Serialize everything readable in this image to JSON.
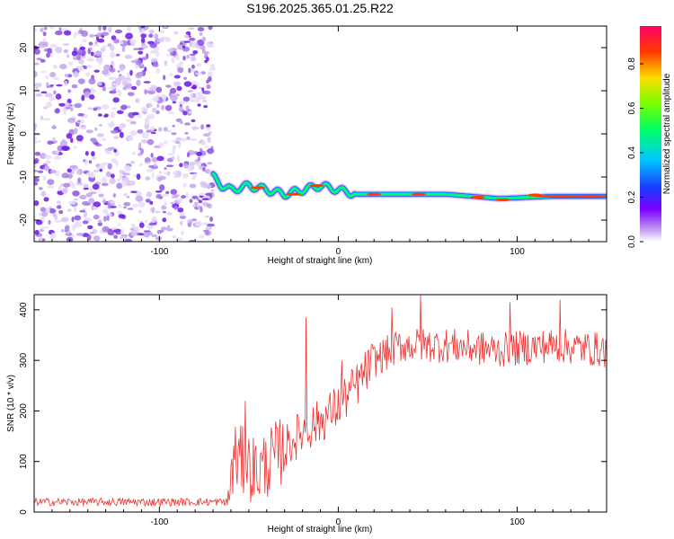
{
  "title": "S196.2025.365.01.25.R22",
  "chart_data": [
    {
      "type": "heatmap",
      "name": "spectrogram",
      "xlabel": "Height of straight line (km)",
      "ylabel": "Frequency (Hz)",
      "xlim": [
        -170,
        150
      ],
      "ylim": [
        -25,
        25
      ],
      "xticks": [
        -100,
        0,
        100
      ],
      "yticks": [
        -20,
        -10,
        0,
        10,
        20
      ],
      "noise_region_x": [
        -170,
        -70
      ],
      "ridge": [
        {
          "x": -70,
          "f": -10
        },
        {
          "x": -65,
          "f": -12
        },
        {
          "x": -60,
          "f": -13
        },
        {
          "x": -50,
          "f": -12
        },
        {
          "x": -40,
          "f": -13
        },
        {
          "x": -30,
          "f": -14
        },
        {
          "x": -20,
          "f": -13
        },
        {
          "x": -10,
          "f": -12
        },
        {
          "x": 0,
          "f": -13
        },
        {
          "x": 10,
          "f": -14
        },
        {
          "x": 60,
          "f": -14
        },
        {
          "x": 90,
          "f": -15
        },
        {
          "x": 120,
          "f": -14.5
        },
        {
          "x": 150,
          "f": -14.5
        }
      ],
      "colorbar": {
        "label": "Normalized spectral amplitude",
        "ticks": [
          "0.0",
          "0.2",
          "0.4",
          "0.6",
          "0.8"
        ],
        "range": [
          0,
          0.97
        ]
      }
    },
    {
      "type": "line",
      "name": "snr",
      "xlabel": "Height of straight line (km)",
      "ylabel": "SNR (10 * v/v)",
      "xlim": [
        -170,
        150
      ],
      "ylim": [
        0,
        430
      ],
      "xticks": [
        -100,
        0,
        100
      ],
      "yticks": [
        0,
        100,
        200,
        300,
        400
      ],
      "color": "#ee3333",
      "trend": [
        {
          "x": -170,
          "y": 20
        },
        {
          "x": -62,
          "y": 20
        },
        {
          "x": -58,
          "y": 110
        },
        {
          "x": -45,
          "y": 80
        },
        {
          "x": -32,
          "y": 120
        },
        {
          "x": -20,
          "y": 160
        },
        {
          "x": -10,
          "y": 180
        },
        {
          "x": 0,
          "y": 210
        },
        {
          "x": 10,
          "y": 250
        },
        {
          "x": 20,
          "y": 300
        },
        {
          "x": 35,
          "y": 330
        },
        {
          "x": 60,
          "y": 330
        },
        {
          "x": 90,
          "y": 320
        },
        {
          "x": 120,
          "y": 330
        },
        {
          "x": 150,
          "y": 320
        }
      ],
      "spikes": [
        {
          "x": -52,
          "y": 220
        },
        {
          "x": -18,
          "y": 385
        },
        {
          "x": 2,
          "y": 300
        },
        {
          "x": 30,
          "y": 405
        },
        {
          "x": 46,
          "y": 430
        },
        {
          "x": 96,
          "y": 415
        },
        {
          "x": 124,
          "y": 420
        }
      ]
    }
  ]
}
